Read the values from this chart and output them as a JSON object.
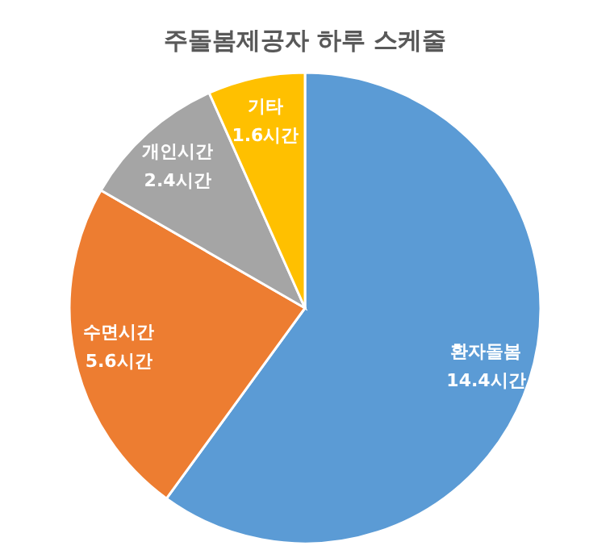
{
  "chart_data": {
    "type": "pie",
    "title": "주돌봄제공자 하루 스케줄",
    "categories": [
      "환자돌봄",
      "수면시간",
      "개인시간",
      "기타"
    ],
    "values": [
      14.4,
      5.6,
      2.4,
      1.6
    ],
    "colors": [
      "#5b9bd5",
      "#ed7d31",
      "#a5a5a5",
      "#ffc000"
    ],
    "value_labels": [
      "14.4시간",
      "5.6시간",
      "2.4시간",
      "1.6시간"
    ],
    "legend": false
  }
}
